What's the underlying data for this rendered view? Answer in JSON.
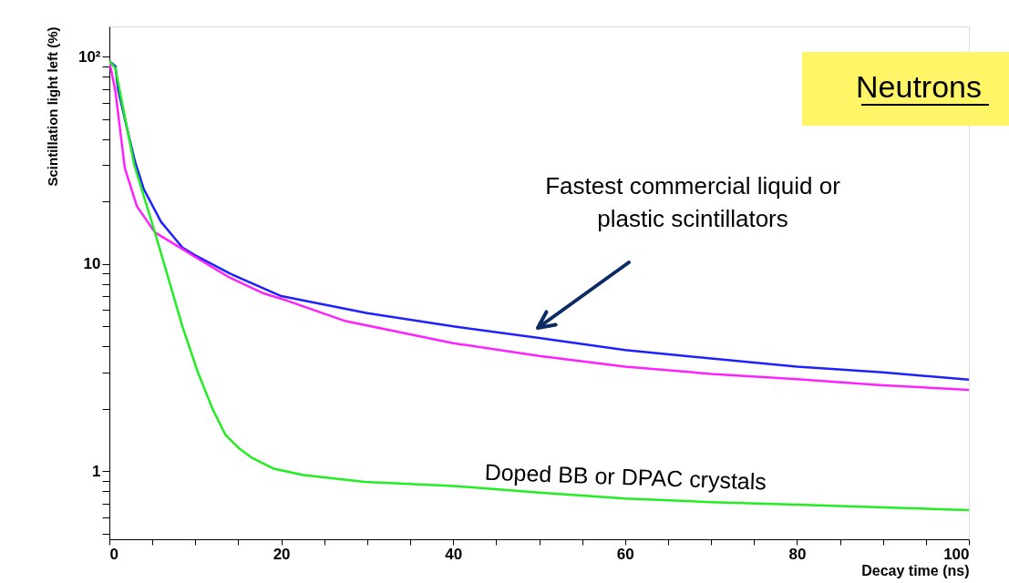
{
  "chart_data": {
    "type": "line",
    "xlabel": "Decay time (ns)",
    "ylabel": "Scintillation light left (%)",
    "xlim": [
      0,
      100
    ],
    "ylim": [
      0.47,
      140
    ],
    "log": "y",
    "grid": false,
    "legend": false,
    "marker": "none",
    "line_style": "solid",
    "xticks": [
      0,
      {
        "value": 5,
        "label": null
      },
      {
        "value": 10,
        "label": null
      },
      {
        "value": 15,
        "label": null
      },
      20,
      {
        "value": 25,
        "label": null
      },
      {
        "value": 30,
        "label": null
      },
      {
        "value": 35,
        "label": null
      },
      40,
      {
        "value": 45,
        "label": null
      },
      {
        "value": 50,
        "label": null
      },
      {
        "value": 55,
        "label": null
      },
      60,
      {
        "value": 65,
        "label": null
      },
      {
        "value": 70,
        "label": null
      },
      {
        "value": 75,
        "label": null
      },
      80,
      {
        "value": 85,
        "label": null
      },
      {
        "value": 90,
        "label": null
      },
      {
        "value": 95,
        "label": null
      },
      100
    ],
    "yticks": [
      {
        "value": 0.5,
        "label": null
      },
      {
        "value": 0.6,
        "label": null
      },
      {
        "value": 0.7,
        "label": null
      },
      {
        "value": 0.8,
        "label": null
      },
      {
        "value": 0.9,
        "label": null
      },
      1,
      {
        "value": 2,
        "label": null
      },
      {
        "value": 3,
        "label": null
      },
      {
        "value": 4,
        "label": null
      },
      {
        "value": 5,
        "label": null
      },
      {
        "value": 6,
        "label": null
      },
      {
        "value": 7,
        "label": null
      },
      {
        "value": 8,
        "label": null
      },
      {
        "value": 9,
        "label": null
      },
      10,
      {
        "value": 20,
        "label": null
      },
      {
        "value": 30,
        "label": null
      },
      {
        "value": 40,
        "label": null
      },
      {
        "value": 50,
        "label": null
      },
      {
        "value": 60,
        "label": null
      },
      {
        "value": 70,
        "label": null
      },
      {
        "value": 80,
        "label": null
      },
      {
        "value": 90,
        "label": null
      },
      {
        "value": 100,
        "label": "10²"
      }
    ],
    "series": [
      {
        "color": "#2020ff",
        "x": [
          0,
          0.7,
          1,
          2,
          3,
          4,
          6,
          8.5,
          10,
          14,
          20,
          30,
          40,
          50,
          60,
          70,
          80,
          90,
          100
        ],
        "values": [
          95,
          90,
          70,
          46,
          31,
          23,
          16,
          12,
          11,
          9,
          7,
          5.8,
          5.0,
          4.4,
          3.85,
          3.5,
          3.2,
          3.0,
          2.77
        ]
      },
      {
        "color": "#ff20ff",
        "x": [
          0,
          0.7,
          1.8,
          3.2,
          5.3,
          8.8,
          10,
          14,
          18,
          20,
          27.5,
          40,
          50,
          60,
          70,
          80,
          90,
          100
        ],
        "values": [
          95,
          68,
          29,
          19,
          14.2,
          11.6,
          10.8,
          8.6,
          7.2,
          6.8,
          5.3,
          4.15,
          3.6,
          3.2,
          2.95,
          2.78,
          2.6,
          2.47
        ]
      },
      {
        "color": "#20ee20",
        "x": [
          0,
          0.7,
          2.9,
          5.3,
          6.7,
          8.5,
          10.3,
          12,
          13.5,
          15,
          16.6,
          19.1,
          22.6,
          29.7,
          40,
          50,
          60,
          70,
          80,
          90,
          100
        ],
        "values": [
          95,
          88,
          30,
          14.2,
          9.0,
          5.0,
          3.0,
          2.0,
          1.5,
          1.3,
          1.16,
          1.03,
          0.96,
          0.89,
          0.85,
          0.79,
          0.74,
          0.71,
          0.69,
          0.67,
          0.65
        ]
      }
    ],
    "annotations": [
      "Fastest commercial liquid or\nplastic scintillators",
      {
        "text": "Doped BB or DPAC crystals",
        "x": 60,
        "y": 0.74
      },
      "Neutrons"
    ]
  }
}
